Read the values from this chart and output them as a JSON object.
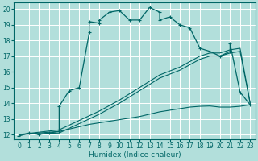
{
  "xlabel": "Humidex (Indice chaleur)",
  "bg_color": "#b2dfdb",
  "grid_color": "#ffffff",
  "line_color": "#006666",
  "xlim": [
    -0.5,
    23.5
  ],
  "ylim": [
    11.7,
    20.4
  ],
  "yticks": [
    12,
    13,
    14,
    15,
    16,
    17,
    18,
    19,
    20
  ],
  "xticks": [
    0,
    1,
    2,
    3,
    4,
    5,
    6,
    7,
    8,
    9,
    10,
    11,
    12,
    13,
    14,
    15,
    16,
    17,
    18,
    19,
    20,
    21,
    22,
    23
  ],
  "curve1_x": [
    0,
    1,
    2,
    3,
    4,
    4,
    5,
    6,
    7,
    7,
    8,
    8,
    9,
    10,
    11,
    12,
    13,
    14,
    14,
    15,
    16,
    17,
    18,
    19,
    20,
    21,
    21,
    22,
    23
  ],
  "curve1_y": [
    11.9,
    12.1,
    12.0,
    12.1,
    12.2,
    13.8,
    14.8,
    15.0,
    18.5,
    19.2,
    19.1,
    19.3,
    19.8,
    19.9,
    19.3,
    19.3,
    20.1,
    19.8,
    19.3,
    19.5,
    19.0,
    18.8,
    17.5,
    17.3,
    17.0,
    17.3,
    17.8,
    14.7,
    13.9
  ],
  "curve2_x": [
    0,
    4,
    5,
    7,
    8,
    10,
    12,
    13,
    14,
    16,
    18,
    19,
    20,
    21,
    22,
    23
  ],
  "curve2_y": [
    12.0,
    12.3,
    12.6,
    13.2,
    13.5,
    14.2,
    15.0,
    15.4,
    15.8,
    16.3,
    17.0,
    17.2,
    17.2,
    17.4,
    17.5,
    14.0
  ],
  "curve3_x": [
    0,
    4,
    5,
    7,
    8,
    10,
    12,
    13,
    14,
    16,
    18,
    19,
    20,
    21,
    22,
    23
  ],
  "curve3_y": [
    12.0,
    12.1,
    12.4,
    13.0,
    13.3,
    14.0,
    14.8,
    15.2,
    15.6,
    16.1,
    16.8,
    17.0,
    17.0,
    17.2,
    17.3,
    14.0
  ],
  "curve4_x": [
    0,
    1,
    2,
    3,
    4,
    5,
    6,
    7,
    8,
    9,
    10,
    11,
    12,
    13,
    14,
    15,
    16,
    17,
    18,
    19,
    20,
    21,
    22,
    23
  ],
  "curve4_y": [
    12.0,
    12.05,
    12.1,
    12.15,
    12.2,
    12.35,
    12.5,
    12.65,
    12.75,
    12.85,
    12.95,
    13.05,
    13.15,
    13.3,
    13.45,
    13.55,
    13.65,
    13.75,
    13.8,
    13.82,
    13.75,
    13.75,
    13.8,
    13.9
  ]
}
